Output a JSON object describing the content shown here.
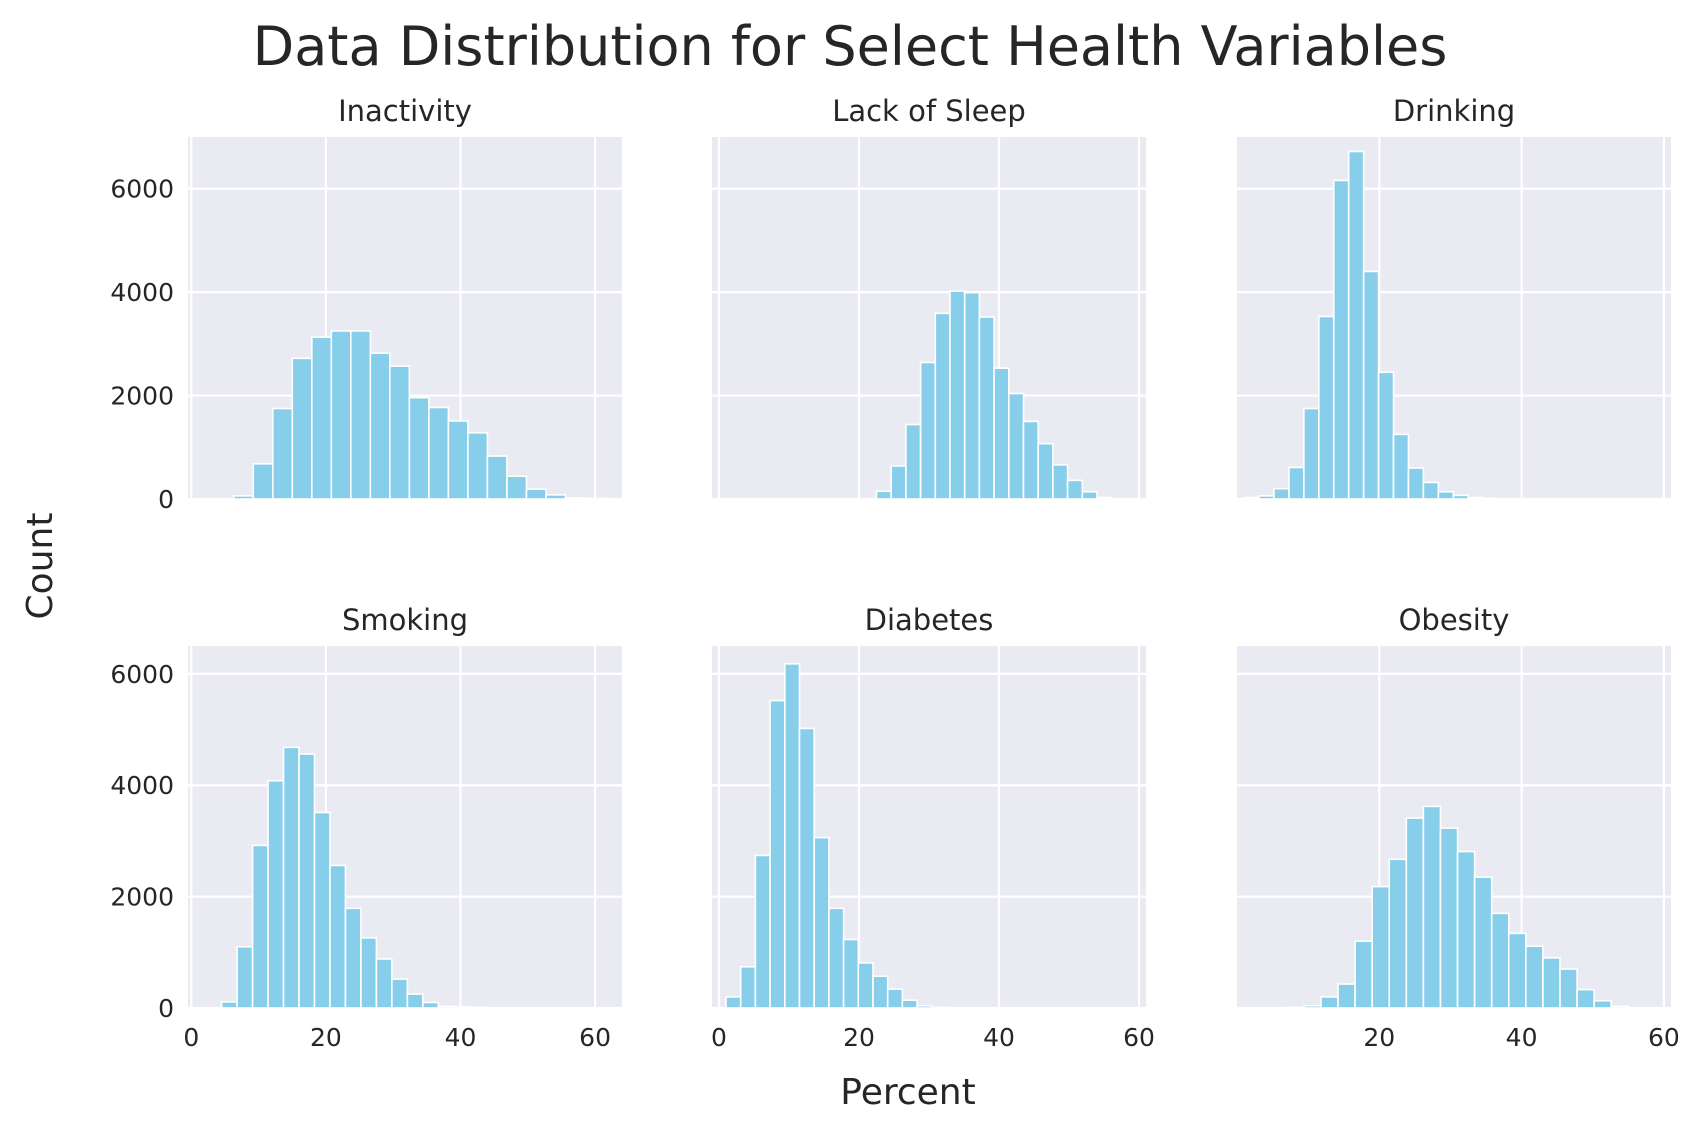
{
  "colors": {
    "panel_bg": "#EAEAF2",
    "grid": "#FFFFFF",
    "bar": "#87CEEB",
    "bar_edge": "#FFFFFF",
    "text": "#262626"
  },
  "labels": {
    "suptitle": "Data Distribution for Select Health Variables",
    "xlabel": "Percent",
    "ylabel": "Count"
  },
  "chart_data": [
    {
      "type": "bar",
      "title": "Inactivity",
      "xlabel": "",
      "ylabel": "Count",
      "grid": true,
      "xlim": [
        -0.5,
        64
      ],
      "ylim": [
        0,
        7000
      ],
      "xticks": [
        0,
        20,
        40,
        60
      ],
      "yticks": [
        0,
        2000,
        4000,
        6000
      ],
      "tick_labels_x": false,
      "tick_labels_y": true,
      "bins": {
        "start": 0.5,
        "width": 2.9
      },
      "values": [
        0,
        0,
        60,
        680,
        1750,
        2720,
        3130,
        3250,
        3250,
        2820,
        2570,
        1960,
        1770,
        1510,
        1280,
        830,
        440,
        190,
        80,
        20,
        10
      ]
    },
    {
      "type": "bar",
      "title": "Lack of Sleep",
      "xlabel": "",
      "ylabel": "",
      "grid": true,
      "xlim": [
        -1,
        61
      ],
      "ylim": [
        0,
        7000
      ],
      "xticks": [
        0,
        20,
        40,
        60
      ],
      "yticks": [
        0,
        2000,
        4000,
        6000
      ],
      "tick_labels_x": false,
      "tick_labels_y": false,
      "bins": {
        "start": 22.5,
        "width": 2.1
      },
      "values": [
        150,
        640,
        1440,
        2640,
        3590,
        4020,
        3990,
        3520,
        2530,
        2040,
        1500,
        1070,
        660,
        360,
        140,
        30
      ]
    },
    {
      "type": "bar",
      "title": "Drinking",
      "xlabel": "",
      "ylabel": "",
      "grid": true,
      "xlim": [
        0,
        61
      ],
      "ylim": [
        0,
        7000
      ],
      "xticks": [
        20,
        40,
        60
      ],
      "yticks": [
        0,
        2000,
        4000,
        6000
      ],
      "tick_labels_x": false,
      "tick_labels_y": false,
      "bins": {
        "start": 1,
        "width": 2.1
      },
      "values": [
        30,
        60,
        200,
        610,
        1750,
        3530,
        6160,
        6720,
        4400,
        2450,
        1250,
        600,
        320,
        140,
        70,
        30,
        10,
        5
      ]
    },
    {
      "type": "bar",
      "title": "Smoking",
      "xlabel": "",
      "ylabel": "Count",
      "grid": true,
      "xlim": [
        -0.5,
        64
      ],
      "ylim": [
        0,
        6500
      ],
      "xticks": [
        0,
        20,
        40,
        60
      ],
      "yticks": [
        0,
        2000,
        4000,
        6000
      ],
      "tick_labels_x": true,
      "tick_labels_y": true,
      "bins": {
        "start": 4.5,
        "width": 2.3
      },
      "values": [
        110,
        1100,
        2920,
        4080,
        4680,
        4560,
        3510,
        2560,
        1790,
        1260,
        880,
        520,
        250,
        100,
        30,
        20,
        10
      ]
    },
    {
      "type": "bar",
      "title": "Diabetes",
      "xlabel": "Percent",
      "ylabel": "",
      "grid": true,
      "xlim": [
        -1,
        61
      ],
      "ylim": [
        0,
        6500
      ],
      "xticks": [
        0,
        20,
        40,
        60
      ],
      "yticks": [
        0,
        2000,
        4000,
        6000
      ],
      "tick_labels_x": true,
      "tick_labels_y": false,
      "bins": {
        "start": 1,
        "width": 2.1
      },
      "values": [
        200,
        740,
        2740,
        5520,
        6180,
        5020,
        3060,
        1790,
        1230,
        810,
        570,
        340,
        140,
        40,
        10
      ]
    },
    {
      "type": "bar",
      "title": "Obesity",
      "xlabel": "",
      "ylabel": "",
      "grid": true,
      "xlim": [
        0,
        61
      ],
      "ylim": [
        0,
        6500
      ],
      "xticks": [
        20,
        40,
        60
      ],
      "yticks": [
        0,
        2000,
        4000,
        6000
      ],
      "tick_labels_x": true,
      "tick_labels_y": false,
      "bins": {
        "start": 7,
        "width": 2.4
      },
      "values": [
        10,
        40,
        200,
        430,
        1200,
        2180,
        2670,
        3410,
        3620,
        3230,
        2810,
        2350,
        1700,
        1340,
        1110,
        900,
        700,
        330,
        130,
        30
      ]
    }
  ]
}
